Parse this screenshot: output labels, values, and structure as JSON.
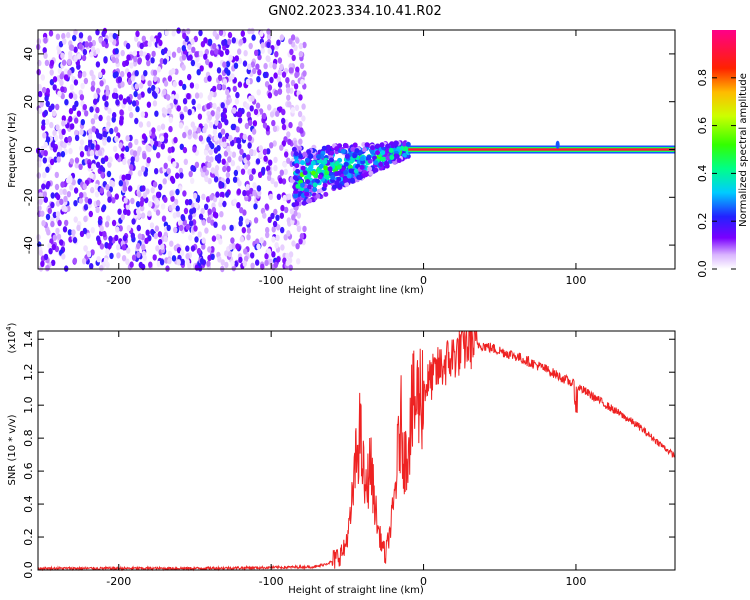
{
  "title": "GN02.2023.334.10.41.R02",
  "chart_data": [
    {
      "type": "heatmap",
      "xlabel": "Height of straight line (km)",
      "ylabel": "Frequency (Hz)",
      "xlim": [
        -253,
        165
      ],
      "ylim": [
        -50,
        50
      ],
      "x_ticks": [
        -200,
        -100,
        0,
        100
      ],
      "x_tick_labels": [
        "-200",
        "-100",
        "0",
        "100"
      ],
      "y_ticks": [
        -40,
        -20,
        0,
        20,
        40
      ],
      "y_tick_labels": [
        "-40",
        "-20",
        "0",
        "20",
        "40"
      ],
      "colorbar": {
        "label": "Normalized spectral amplitude",
        "range": [
          0.0,
          1.0
        ],
        "ticks": [
          0.0,
          0.2,
          0.4,
          0.6,
          0.8
        ],
        "tick_labels": [
          "0.0",
          "0.2",
          "0.4",
          "0.6",
          "0.8"
        ],
        "colormap": "rainbow (white/violet at 0, blue 0.2, cyan 0.3, green 0.5, yellow 0.65, red 0.85, magenta 1.0)"
      },
      "features": {
        "noise_region": {
          "x_range": [
            -253,
            -78
          ],
          "y_range": [
            -50,
            50
          ],
          "typical_amplitude": 0.05
        },
        "transition_region": {
          "x_range": [
            -85,
            -10
          ],
          "y_center": -5,
          "y_spread": 12,
          "peak_amplitude": 0.55
        },
        "carrier_line": {
          "x_range": [
            -10,
            165
          ],
          "y": 0,
          "amplitude": 0.9
        },
        "spur": {
          "x": 88,
          "y": 2
        }
      }
    },
    {
      "type": "line",
      "xlabel": "Height of straight line (km)",
      "ylabel": "SNR (10 * v/v)",
      "y_scale_label": "(x10",
      "y_scale_exponent": "4",
      "xlim": [
        -253,
        165
      ],
      "ylim": [
        0.0,
        1.45
      ],
      "x_ticks": [
        -200,
        -100,
        0,
        100
      ],
      "x_tick_labels": [
        "-200",
        "-100",
        "0",
        "100"
      ],
      "y_ticks": [
        0.0,
        0.2,
        0.4,
        0.6,
        0.8,
        1.0,
        1.2,
        1.4
      ],
      "y_tick_labels": [
        "0.0",
        "0.2",
        "0.4",
        "0.6",
        "0.8",
        "1.0",
        "1.2",
        "1.4"
      ],
      "color": "#ee2222",
      "x": [
        -253,
        -200,
        -150,
        -100,
        -70,
        -60,
        -52,
        -48,
        -45,
        -42,
        -38,
        -35,
        -30,
        -25,
        -20,
        -15,
        -12,
        -8,
        -5,
        0,
        10,
        20,
        30,
        40,
        60,
        80,
        100,
        120,
        140,
        165
      ],
      "y": [
        0.01,
        0.01,
        0.01,
        0.015,
        0.02,
        0.05,
        0.12,
        0.3,
        0.6,
        0.85,
        0.45,
        0.65,
        0.25,
        0.08,
        0.35,
        0.9,
        0.65,
        0.95,
        1.02,
        1.1,
        1.22,
        1.3,
        1.38,
        1.36,
        1.3,
        1.22,
        1.12,
        1.0,
        0.88,
        0.69
      ]
    }
  ]
}
